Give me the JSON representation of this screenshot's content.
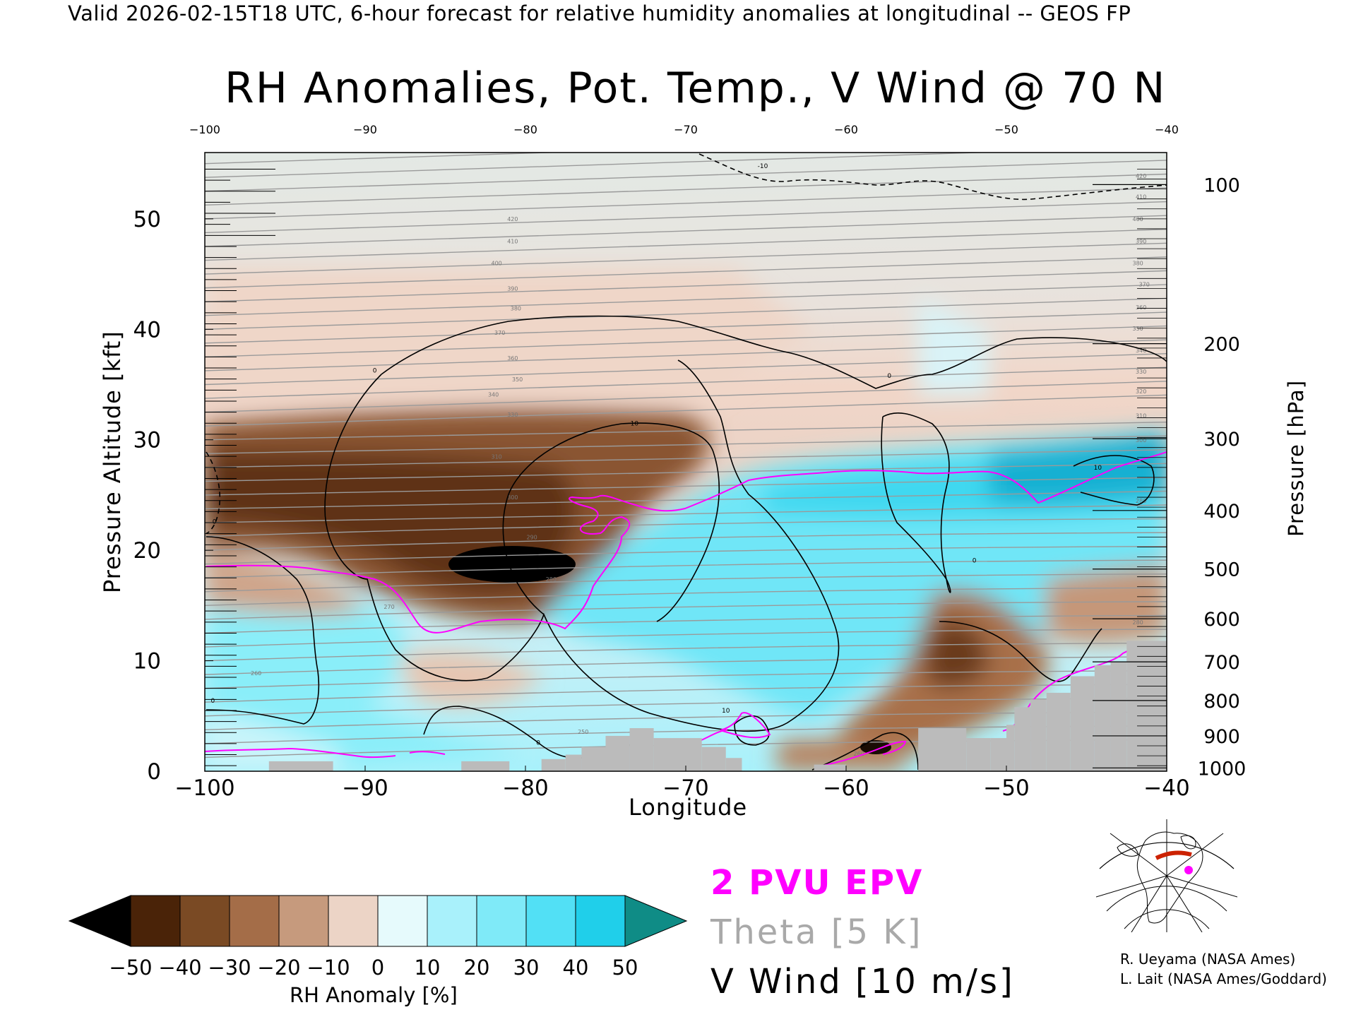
{
  "header": "Valid 2026-02-15T18 UTC, 6-hour forecast for relative humidity anomalies at longitudinal -- GEOS FP",
  "title": "RH Anomalies, Pot. Temp., V Wind @ 70 N",
  "colors": {
    "epv": "#ff00ff",
    "theta": "#a9a9a9",
    "v_wind": "#000000",
    "terrain": "#bbbbbb",
    "colorbar": [
      "#000000",
      "#4a2308",
      "#7a4a24",
      "#a46d48",
      "#c69a7d",
      "#ecd4c6",
      "#e6fafc",
      "#a9f1fb",
      "#7feaf8",
      "#52e0f5",
      "#20cfea",
      "#0a9bbd",
      "#0f8c86"
    ]
  },
  "legend": {
    "epv": "2 PVU EPV",
    "theta": "Theta [5 K]",
    "v_wind": "V Wind [10 m/s]"
  },
  "credits": [
    "R. Ueyama (NASA Ames)",
    "L. Lait (NASA Ames/Goddard)"
  ],
  "chart_data": {
    "type": "heatmap",
    "title": "RH Anomalies, Pot. Temp., V Wind @ 70 N",
    "xlabel": "Longitude",
    "ylabel": "Pressure Altitude [kft]",
    "y2label": "Pressure [hPa]",
    "xlim": [
      -100,
      -40
    ],
    "ylim": [
      0,
      56
    ],
    "x_ticks": [
      -100,
      -90,
      -80,
      -70,
      -60,
      -50,
      -40
    ],
    "x_tick_labels": [
      "−100",
      "−90",
      "−80",
      "−70",
      "−60",
      "−50",
      "−40"
    ],
    "y_ticks": [
      0,
      10,
      20,
      30,
      40,
      50
    ],
    "pressure_axis": [
      {
        "hPa": 100,
        "kft": 53.1
      },
      {
        "hPa": 200,
        "kft": 38.7
      },
      {
        "hPa": 300,
        "kft": 30.1
      },
      {
        "hPa": 400,
        "kft": 23.6
      },
      {
        "hPa": 500,
        "kft": 18.3
      },
      {
        "hPa": 600,
        "kft": 13.8
      },
      {
        "hPa": 700,
        "kft": 9.9
      },
      {
        "hPa": 800,
        "kft": 6.4
      },
      {
        "hPa": 900,
        "kft": 3.2
      },
      {
        "hPa": 1000,
        "kft": 0.3
      }
    ],
    "colorbar": {
      "label": "RH Anomaly [%]",
      "ticks": [
        -50,
        -40,
        -30,
        -20,
        -10,
        0,
        10,
        20,
        30,
        40,
        50
      ],
      "tick_labels": [
        "−50",
        "−40",
        "−30",
        "−20",
        "−10",
        "0",
        "10",
        "20",
        "30",
        "40",
        "50"
      ]
    },
    "theta_labels": [
      {
        "lon": -80.8,
        "kft": 49.8,
        "text": "420"
      },
      {
        "lon": -80.8,
        "kft": 47.8,
        "text": "410"
      },
      {
        "lon": -81.8,
        "kft": 45.8,
        "text": "400"
      },
      {
        "lon": -80.8,
        "kft": 43.5,
        "text": "390"
      },
      {
        "lon": -80.6,
        "kft": 41.7,
        "text": "380"
      },
      {
        "lon": -81.6,
        "kft": 39.5,
        "text": "370"
      },
      {
        "lon": -80.8,
        "kft": 37.2,
        "text": "360"
      },
      {
        "lon": -80.5,
        "kft": 35.3,
        "text": "350"
      },
      {
        "lon": -82.0,
        "kft": 33.9,
        "text": "340"
      },
      {
        "lon": -80.8,
        "kft": 32.1,
        "text": "330"
      },
      {
        "lon": -81.8,
        "kft": 28.3,
        "text": "310"
      },
      {
        "lon": -80.8,
        "kft": 24.6,
        "text": "300"
      },
      {
        "lon": -79.6,
        "kft": 21.0,
        "text": "290"
      },
      {
        "lon": -78.4,
        "kft": 17.2,
        "text": "280"
      },
      {
        "lon": -88.5,
        "kft": 14.7,
        "text": "270"
      },
      {
        "lon": -96.8,
        "kft": 8.7,
        "text": "260"
      },
      {
        "lon": -76.4,
        "kft": 3.4,
        "text": "250"
      },
      {
        "lon": -59.2,
        "kft": 1.4,
        "text": "260"
      },
      {
        "lon": -41.6,
        "kft": 53.7,
        "text": "420"
      },
      {
        "lon": -41.6,
        "kft": 51.8,
        "text": "410"
      },
      {
        "lon": -41.8,
        "kft": 49.8,
        "text": "400"
      },
      {
        "lon": -41.6,
        "kft": 47.8,
        "text": "390"
      },
      {
        "lon": -41.8,
        "kft": 45.8,
        "text": "380"
      },
      {
        "lon": -41.4,
        "kft": 43.9,
        "text": "370"
      },
      {
        "lon": -41.6,
        "kft": 41.8,
        "text": "360"
      },
      {
        "lon": -41.8,
        "kft": 39.9,
        "text": "350"
      },
      {
        "lon": -41.6,
        "kft": 37.9,
        "text": "340"
      },
      {
        "lon": -41.6,
        "kft": 36.0,
        "text": "330"
      },
      {
        "lon": -41.6,
        "kft": 34.2,
        "text": "320"
      },
      {
        "lon": -41.6,
        "kft": 32.0,
        "text": "310"
      },
      {
        "lon": -41.6,
        "kft": 29.8,
        "text": "300"
      },
      {
        "lon": -41.6,
        "kft": 24.3,
        "text": "280"
      },
      {
        "lon": -41.8,
        "kft": 13.3,
        "text": "280"
      }
    ],
    "wind_labels": [
      {
        "lon": -65.2,
        "kft": 54.6,
        "text": "-10"
      },
      {
        "lon": -89.4,
        "kft": 36.1,
        "text": "0"
      },
      {
        "lon": -57.3,
        "kft": 35.6,
        "text": "0"
      },
      {
        "lon": -73.2,
        "kft": 31.3,
        "text": "10"
      },
      {
        "lon": -44.3,
        "kft": 27.3,
        "text": "10"
      },
      {
        "lon": -52.0,
        "kft": 18.9,
        "text": "0"
      },
      {
        "lon": -67.5,
        "kft": 5.3,
        "text": "10"
      },
      {
        "lon": -79.2,
        "kft": 2.4,
        "text": "0"
      },
      {
        "lon": -99.5,
        "kft": 6.2,
        "text": "0"
      },
      {
        "lon": -99.4,
        "kft": 22.4,
        "text": "0"
      }
    ]
  }
}
